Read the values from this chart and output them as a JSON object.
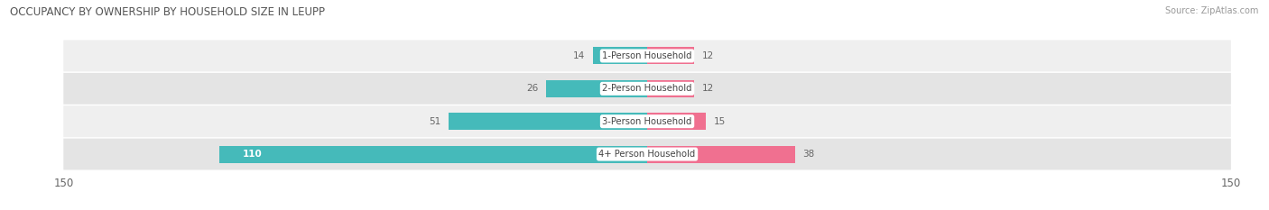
{
  "title": "OCCUPANCY BY OWNERSHIP BY HOUSEHOLD SIZE IN LEUPP",
  "source": "Source: ZipAtlas.com",
  "categories": [
    "1-Person Household",
    "2-Person Household",
    "3-Person Household",
    "4+ Person Household"
  ],
  "owner_values": [
    14,
    26,
    51,
    110
  ],
  "renter_values": [
    12,
    12,
    15,
    38
  ],
  "owner_color": "#45BABA",
  "renter_color": "#F07090",
  "row_bg_colors": [
    "#EFEFEF",
    "#E4E4E4",
    "#EFEFEF",
    "#E4E4E4"
  ],
  "axis_max": 150,
  "label_color_dark": "#666666",
  "label_color_white": "#FFFFFF",
  "title_color": "#555555",
  "figsize": [
    14.06,
    2.33
  ],
  "dpi": 100
}
